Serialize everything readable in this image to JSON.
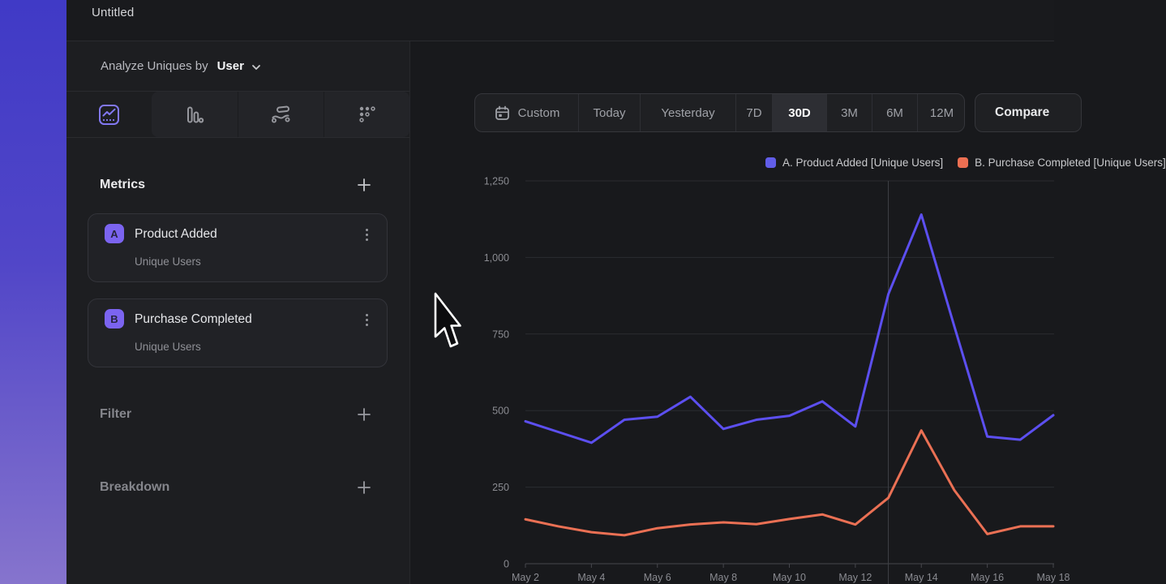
{
  "colors": {
    "accent": "#8278f2",
    "badge_bg": "#7b64f0",
    "strip_top": "#403ac6",
    "strip_bottom": "#8674cd",
    "series_a_line": "#5c4ff0",
    "series_b_line": "#ea7054"
  },
  "window": {
    "title": "Untitled"
  },
  "sidebar": {
    "analyze": {
      "label": "Analyze Uniques by",
      "value": "User"
    },
    "tabs": [
      {
        "name": "insights-line-chart",
        "active": true
      },
      {
        "name": "bar-chart",
        "active": false
      },
      {
        "name": "flows",
        "active": false
      },
      {
        "name": "retention",
        "active": false
      }
    ],
    "metrics": {
      "title": "Metrics",
      "items": [
        {
          "badge": "A",
          "name": "Product Added",
          "subtitle": "Unique Users"
        },
        {
          "badge": "B",
          "name": "Purchase Completed",
          "subtitle": "Unique Users"
        }
      ]
    },
    "filter": {
      "label": "Filter"
    },
    "breakdown": {
      "label": "Breakdown"
    }
  },
  "toolbar": {
    "ranges": [
      "Custom",
      "Today",
      "Yesterday",
      "7D",
      "30D",
      "3M",
      "6M",
      "12M"
    ],
    "active_range": "30D",
    "compare_label": "Compare"
  },
  "legend": {
    "items": [
      {
        "label": "A. Product Added [Unique Users]",
        "color": "#615de8"
      },
      {
        "label": "B. Purchase Completed [Unique Users]",
        "color": "#ec6f52"
      }
    ]
  },
  "chart_data": {
    "type": "line",
    "x": [
      "May 2",
      "May 3",
      "May 4",
      "May 5",
      "May 6",
      "May 7",
      "May 8",
      "May 9",
      "May 10",
      "May 11",
      "May 12",
      "May 13",
      "May 14",
      "May 15",
      "May 16",
      "May 17",
      "May 18"
    ],
    "x_axis_tick_labels": [
      "May 2",
      "May 4",
      "May 6",
      "May 8",
      "May 10",
      "May 12",
      "May 14",
      "May 16",
      "May 18"
    ],
    "series": [
      {
        "name": "A. Product Added [Unique Users]",
        "color": "#5c4ff0",
        "values": [
          465,
          430,
          395,
          470,
          480,
          545,
          440,
          470,
          483,
          530,
          448,
          880,
          1140,
          775,
          415,
          405,
          485
        ]
      },
      {
        "name": "B. Purchase Completed [Unique Users]",
        "color": "#ea7054",
        "values": [
          145,
          122,
          103,
          93,
          116,
          128,
          135,
          129,
          146,
          161,
          128,
          215,
          435,
          240,
          97,
          122,
          122
        ]
      }
    ],
    "ylim": [
      0,
      1250
    ],
    "yticks": [
      0,
      250,
      500,
      750,
      1000,
      1250
    ],
    "ytick_labels": [
      "0",
      "250",
      "500",
      "750",
      "1,000",
      "1,250"
    ],
    "grid": "horizontal",
    "legend_position": "top-right",
    "reference_line_x": "May 13"
  }
}
